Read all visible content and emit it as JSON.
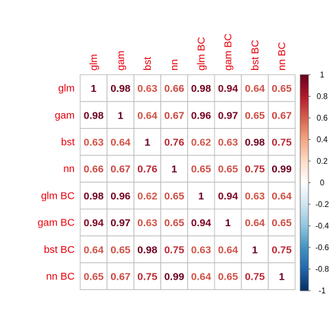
{
  "chart_data": {
    "type": "heatmap",
    "title": "",
    "labels": [
      "glm",
      "gam",
      "bst",
      "nn",
      "glm BC",
      "gam BC",
      "bst BC",
      "nn BC"
    ],
    "label_color": "#e8000b",
    "matrix": [
      [
        1,
        0.98,
        0.63,
        0.66,
        0.98,
        0.94,
        0.64,
        0.65
      ],
      [
        0.98,
        1,
        0.64,
        0.67,
        0.96,
        0.97,
        0.65,
        0.67
      ],
      [
        0.63,
        0.64,
        1,
        0.76,
        0.62,
        0.63,
        0.98,
        0.75
      ],
      [
        0.66,
        0.67,
        0.76,
        1,
        0.65,
        0.65,
        0.75,
        0.99
      ],
      [
        0.98,
        0.96,
        0.62,
        0.65,
        1,
        0.94,
        0.63,
        0.64
      ],
      [
        0.94,
        0.97,
        0.63,
        0.65,
        0.94,
        1,
        0.64,
        0.65
      ],
      [
        0.64,
        0.65,
        0.98,
        0.75,
        0.63,
        0.64,
        1,
        0.75
      ],
      [
        0.65,
        0.67,
        0.75,
        0.99,
        0.64,
        0.65,
        0.75,
        1
      ]
    ],
    "legend": {
      "position": "right",
      "range": [
        -1,
        1
      ],
      "ticks": [
        "1",
        "0.8",
        "0.6",
        "0.4",
        "0.2",
        "0",
        "-0.2",
        "-0.4",
        "-0.6",
        "-0.8",
        "-1"
      ],
      "colors": [
        "#67001f",
        "#b2182b",
        "#d6604d",
        "#f4a582",
        "#fddbc7",
        "#ffffff",
        "#d1e5f0",
        "#92c5de",
        "#4393c3",
        "#2166ac",
        "#053061"
      ]
    },
    "grid": true
  }
}
